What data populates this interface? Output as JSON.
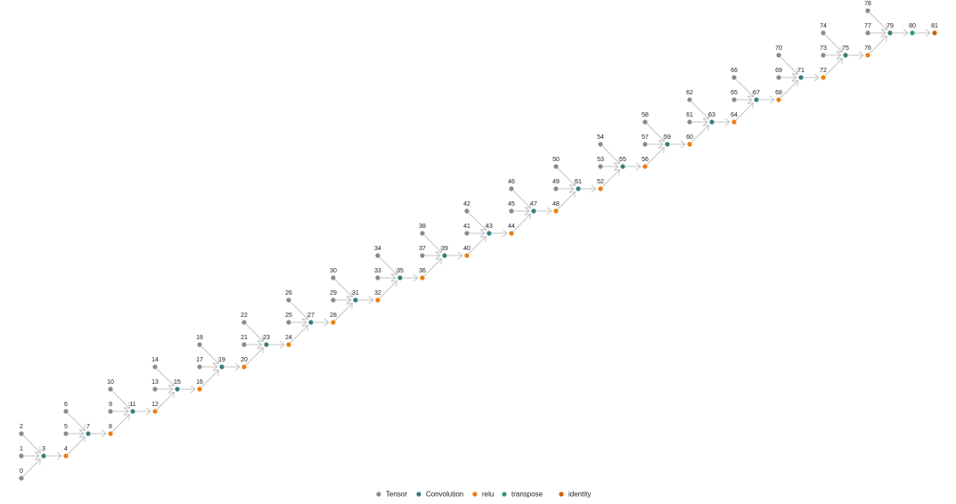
{
  "nodes": [
    {
      "label": "0",
      "kind": "Tensor"
    },
    {
      "label": "1",
      "kind": "Tensor"
    },
    {
      "label": "2",
      "kind": "Tensor"
    },
    {
      "label": "3",
      "kind": "Convolution"
    },
    {
      "label": "4",
      "kind": "relu"
    },
    {
      "label": "5",
      "kind": "Tensor"
    },
    {
      "label": "6",
      "kind": "Tensor"
    },
    {
      "label": "7",
      "kind": "Convolution"
    },
    {
      "label": "8",
      "kind": "relu"
    },
    {
      "label": "9",
      "kind": "Tensor"
    },
    {
      "label": "10",
      "kind": "Tensor"
    },
    {
      "label": "11",
      "kind": "Convolution"
    },
    {
      "label": "12",
      "kind": "relu"
    },
    {
      "label": "13",
      "kind": "Tensor"
    },
    {
      "label": "14",
      "kind": "Tensor"
    },
    {
      "label": "15",
      "kind": "Convolution"
    },
    {
      "label": "16",
      "kind": "relu"
    },
    {
      "label": "17",
      "kind": "Tensor"
    },
    {
      "label": "18",
      "kind": "Tensor"
    },
    {
      "label": "19",
      "kind": "Convolution"
    },
    {
      "label": "20",
      "kind": "relu"
    },
    {
      "label": "21",
      "kind": "Tensor"
    },
    {
      "label": "22",
      "kind": "Tensor"
    },
    {
      "label": "23",
      "kind": "Convolution"
    },
    {
      "label": "24",
      "kind": "relu"
    },
    {
      "label": "25",
      "kind": "Tensor"
    },
    {
      "label": "26",
      "kind": "Tensor"
    },
    {
      "label": "27",
      "kind": "Convolution"
    },
    {
      "label": "28",
      "kind": "relu"
    },
    {
      "label": "29",
      "kind": "Tensor"
    },
    {
      "label": "30",
      "kind": "Tensor"
    },
    {
      "label": "31",
      "kind": "Convolution"
    },
    {
      "label": "32",
      "kind": "relu"
    },
    {
      "label": "33",
      "kind": "Tensor"
    },
    {
      "label": "34",
      "kind": "Tensor"
    },
    {
      "label": "35",
      "kind": "Convolution"
    },
    {
      "label": "36",
      "kind": "relu"
    },
    {
      "label": "37",
      "kind": "Tensor"
    },
    {
      "label": "38",
      "kind": "Tensor"
    },
    {
      "label": "39",
      "kind": "Convolution"
    },
    {
      "label": "40",
      "kind": "relu"
    },
    {
      "label": "41",
      "kind": "Tensor"
    },
    {
      "label": "42",
      "kind": "Tensor"
    },
    {
      "label": "43",
      "kind": "Convolution"
    },
    {
      "label": "44",
      "kind": "relu"
    },
    {
      "label": "45",
      "kind": "Tensor"
    },
    {
      "label": "46",
      "kind": "Tensor"
    },
    {
      "label": "47",
      "kind": "Convolution"
    },
    {
      "label": "48",
      "kind": "relu"
    },
    {
      "label": "49",
      "kind": "Tensor"
    },
    {
      "label": "50",
      "kind": "Tensor"
    },
    {
      "label": "51",
      "kind": "Convolution"
    },
    {
      "label": "52",
      "kind": "relu"
    },
    {
      "label": "53",
      "kind": "Tensor"
    },
    {
      "label": "54",
      "kind": "Tensor"
    },
    {
      "label": "55",
      "kind": "Convolution"
    },
    {
      "label": "56",
      "kind": "relu"
    },
    {
      "label": "57",
      "kind": "Tensor"
    },
    {
      "label": "58",
      "kind": "Tensor"
    },
    {
      "label": "59",
      "kind": "Convolution"
    },
    {
      "label": "60",
      "kind": "relu"
    },
    {
      "label": "61",
      "kind": "Tensor"
    },
    {
      "label": "62",
      "kind": "Tensor"
    },
    {
      "label": "63",
      "kind": "Convolution"
    },
    {
      "label": "64",
      "kind": "relu"
    },
    {
      "label": "65",
      "kind": "Tensor"
    },
    {
      "label": "66",
      "kind": "Tensor"
    },
    {
      "label": "67",
      "kind": "Convolution"
    },
    {
      "label": "68",
      "kind": "relu"
    },
    {
      "label": "69",
      "kind": "Tensor"
    },
    {
      "label": "70",
      "kind": "Tensor"
    },
    {
      "label": "71",
      "kind": "Convolution"
    },
    {
      "label": "72",
      "kind": "relu"
    },
    {
      "label": "73",
      "kind": "Tensor"
    },
    {
      "label": "74",
      "kind": "Tensor"
    },
    {
      "label": "75",
      "kind": "Convolution"
    },
    {
      "label": "76",
      "kind": "relu"
    },
    {
      "label": "77",
      "kind": "Tensor"
    },
    {
      "label": "78",
      "kind": "Tensor"
    },
    {
      "label": "79",
      "kind": "Convolution"
    },
    {
      "label": "80",
      "kind": "transpose"
    },
    {
      "label": "81",
      "kind": "identity"
    }
  ],
  "edges": [
    [
      "0",
      "3"
    ],
    [
      "1",
      "3"
    ],
    [
      "2",
      "3"
    ],
    [
      "3",
      "4"
    ],
    [
      "4",
      "7"
    ],
    [
      "5",
      "7"
    ],
    [
      "6",
      "7"
    ],
    [
      "7",
      "8"
    ],
    [
      "8",
      "11"
    ],
    [
      "9",
      "11"
    ],
    [
      "10",
      "11"
    ],
    [
      "11",
      "12"
    ],
    [
      "12",
      "15"
    ],
    [
      "13",
      "15"
    ],
    [
      "14",
      "15"
    ],
    [
      "15",
      "16"
    ],
    [
      "16",
      "19"
    ],
    [
      "17",
      "19"
    ],
    [
      "18",
      "19"
    ],
    [
      "19",
      "20"
    ],
    [
      "20",
      "23"
    ],
    [
      "21",
      "23"
    ],
    [
      "22",
      "23"
    ],
    [
      "23",
      "24"
    ],
    [
      "24",
      "27"
    ],
    [
      "25",
      "27"
    ],
    [
      "26",
      "27"
    ],
    [
      "27",
      "28"
    ],
    [
      "28",
      "31"
    ],
    [
      "29",
      "31"
    ],
    [
      "30",
      "31"
    ],
    [
      "31",
      "32"
    ],
    [
      "32",
      "35"
    ],
    [
      "33",
      "35"
    ],
    [
      "34",
      "35"
    ],
    [
      "35",
      "36"
    ],
    [
      "36",
      "39"
    ],
    [
      "37",
      "39"
    ],
    [
      "38",
      "39"
    ],
    [
      "39",
      "40"
    ],
    [
      "40",
      "43"
    ],
    [
      "41",
      "43"
    ],
    [
      "42",
      "43"
    ],
    [
      "43",
      "44"
    ],
    [
      "44",
      "47"
    ],
    [
      "45",
      "47"
    ],
    [
      "46",
      "47"
    ],
    [
      "47",
      "48"
    ],
    [
      "48",
      "51"
    ],
    [
      "49",
      "51"
    ],
    [
      "50",
      "51"
    ],
    [
      "51",
      "52"
    ],
    [
      "52",
      "55"
    ],
    [
      "53",
      "55"
    ],
    [
      "54",
      "55"
    ],
    [
      "55",
      "56"
    ],
    [
      "56",
      "59"
    ],
    [
      "57",
      "59"
    ],
    [
      "58",
      "59"
    ],
    [
      "59",
      "60"
    ],
    [
      "60",
      "63"
    ],
    [
      "61",
      "63"
    ],
    [
      "62",
      "63"
    ],
    [
      "63",
      "64"
    ],
    [
      "64",
      "67"
    ],
    [
      "65",
      "67"
    ],
    [
      "66",
      "67"
    ],
    [
      "67",
      "68"
    ],
    [
      "68",
      "71"
    ],
    [
      "69",
      "71"
    ],
    [
      "70",
      "71"
    ],
    [
      "71",
      "72"
    ],
    [
      "72",
      "75"
    ],
    [
      "73",
      "75"
    ],
    [
      "74",
      "75"
    ],
    [
      "75",
      "76"
    ],
    [
      "76",
      "79"
    ],
    [
      "77",
      "79"
    ],
    [
      "78",
      "79"
    ],
    [
      "79",
      "80"
    ],
    [
      "80",
      "81"
    ]
  ],
  "legend": [
    {
      "label": "Tensor",
      "color": "#8a8a8a"
    },
    {
      "label": "Convolution",
      "color": "#3b7d7d"
    },
    {
      "label": "relu",
      "color": "#ee7d10"
    },
    {
      "label": "transpose",
      "color": "#2f9e6c"
    },
    {
      "label": "identity",
      "color": "#c9600c"
    }
  ]
}
